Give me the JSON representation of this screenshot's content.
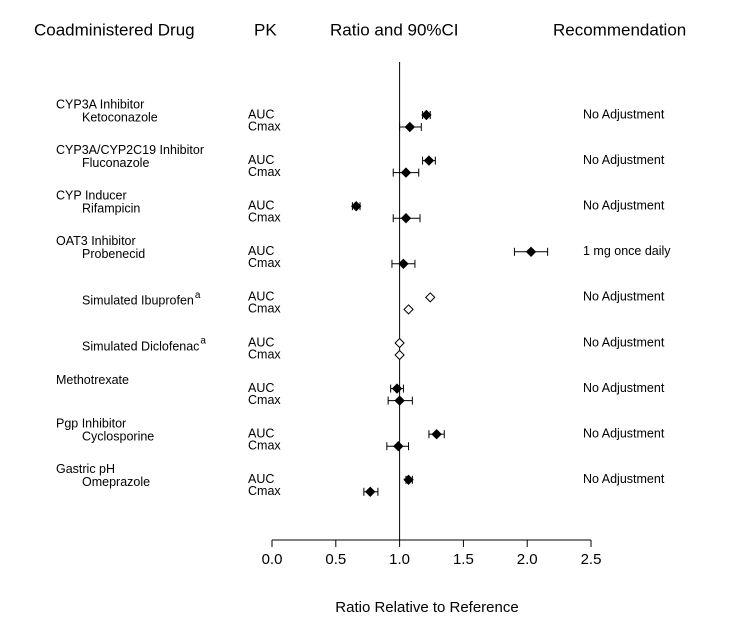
{
  "chart_data": {
    "type": "forest",
    "headers": [
      "Coadministered Drug",
      "PK",
      "Ratio and 90%CI",
      "Recommendation"
    ],
    "x_label": "Ratio Relative to Reference",
    "xlim": [
      0,
      2.5
    ],
    "xticks": [
      {
        "value": 0,
        "label": "0.0"
      },
      0.5,
      {
        "value": 1,
        "label": "1.0"
      },
      1.5,
      {
        "value": 2,
        "label": "2.0"
      },
      2.5
    ],
    "reference_line": 1,
    "groups": [
      {
        "category": [
          "CYP3A Inhibitor",
          "Ketoconazole"
        ],
        "pk": [
          "AUC",
          "Cmax"
        ],
        "values": [
          1.21,
          1.08
        ],
        "ci_low": [
          1.18,
          1.0
        ],
        "ci_high": [
          1.24,
          1.17
        ],
        "marker": "filled",
        "recommendation": "No Adjustment"
      },
      {
        "category": [
          "CYP3A/CYP2C19 Inhibitor",
          "Fluconazole"
        ],
        "pk": [
          "AUC",
          "Cmax"
        ],
        "values": [
          1.23,
          1.05
        ],
        "ci_low": [
          1.18,
          0.95
        ],
        "ci_high": [
          1.28,
          1.15
        ],
        "marker": "filled",
        "recommendation": "No Adjustment"
      },
      {
        "category": [
          "CYP Inducer",
          "Rifampicin"
        ],
        "pk": [
          "AUC",
          "Cmax"
        ],
        "values": [
          0.66,
          1.05
        ],
        "ci_low": [
          0.63,
          0.95
        ],
        "ci_high": [
          0.69,
          1.16
        ],
        "marker": "filled",
        "recommendation": "No Adjustment"
      },
      {
        "category": [
          "OAT3 Inhibitor",
          "Probenecid"
        ],
        "pk": [
          "AUC",
          "Cmax"
        ],
        "values": [
          2.03,
          1.03
        ],
        "ci_low": [
          1.9,
          0.94
        ],
        "ci_high": [
          2.16,
          1.12
        ],
        "marker": "filled",
        "recommendation": "1 mg once daily"
      },
      {
        "category": [
          "Simulated Ibuprofen"
        ],
        "footnote": "a",
        "pk": [
          "AUC",
          "Cmax"
        ],
        "values": [
          1.24,
          1.07
        ],
        "ci_low": [
          null,
          null
        ],
        "ci_high": [
          null,
          null
        ],
        "marker": "open",
        "recommendation": "No Adjustment"
      },
      {
        "category": [
          "Simulated Diclofenac"
        ],
        "footnote": "a",
        "pk": [
          "AUC",
          "Cmax"
        ],
        "values": [
          1.0,
          1.0
        ],
        "ci_low": [
          null,
          null
        ],
        "ci_high": [
          null,
          null
        ],
        "marker": "open",
        "recommendation": "No Adjustment"
      },
      {
        "category": [
          "Methotrexate"
        ],
        "pk": [
          "AUC",
          "Cmax"
        ],
        "values": [
          0.98,
          1.0
        ],
        "ci_low": [
          0.93,
          0.91
        ],
        "ci_high": [
          1.03,
          1.1
        ],
        "marker": "filled",
        "recommendation": "No Adjustment"
      },
      {
        "category": [
          "Pgp Inhibitor",
          "Cyclosporine"
        ],
        "pk": [
          "AUC",
          "Cmax"
        ],
        "values": [
          1.29,
          0.99
        ],
        "ci_low": [
          1.23,
          0.9
        ],
        "ci_high": [
          1.35,
          1.07
        ],
        "marker": "filled",
        "recommendation": "No Adjustment"
      },
      {
        "category": [
          "Gastric pH",
          "Omeprazole"
        ],
        "pk": [
          "AUC",
          "Cmax"
        ],
        "values": [
          1.07,
          0.77
        ],
        "ci_low": [
          1.05,
          0.72
        ],
        "ci_high": [
          1.1,
          0.83
        ],
        "marker": "filled",
        "recommendation": "No Adjustment"
      }
    ]
  }
}
